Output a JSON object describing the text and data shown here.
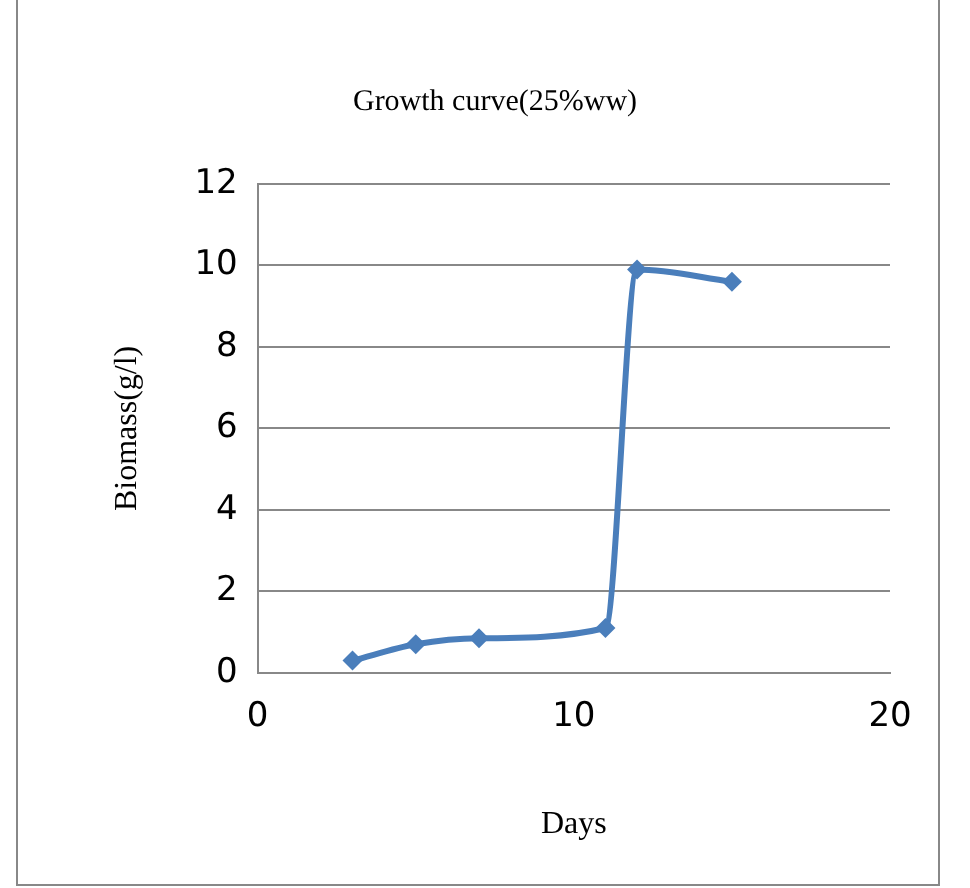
{
  "chart_data": {
    "type": "line",
    "title": "Growth curve(25%ww)",
    "xlabel": "Days",
    "ylabel": "Biomass(g/l)",
    "x": [
      3,
      5,
      7,
      11,
      12,
      15
    ],
    "series": [
      {
        "color": "#4a7ebb",
        "values": [
          0.3,
          0.7,
          0.85,
          1.1,
          9.9,
          9.6
        ]
      }
    ],
    "xlim": [
      0,
      20
    ],
    "xticks": [
      0,
      10,
      20
    ],
    "ylim": [
      0,
      12
    ],
    "yticks": [
      0,
      2,
      4,
      6,
      8,
      10,
      12
    ],
    "grid": "y",
    "legend": false,
    "marker": "diamond",
    "line_style": "solid"
  }
}
